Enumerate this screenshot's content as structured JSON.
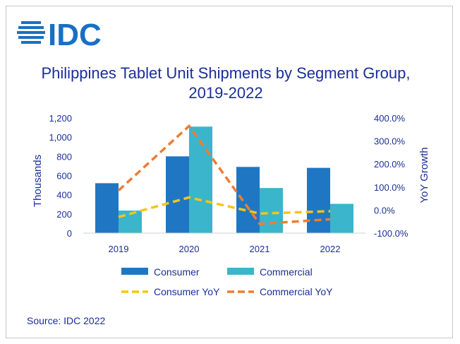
{
  "logo": {
    "text": "IDC",
    "color": "#1a6fc4"
  },
  "source": "Source: IDC 2022",
  "colors": {
    "text": "#1a2e9a",
    "consumer": "#1f77c4",
    "commercial": "#3bb5cc",
    "consumer_yoy": "#f5c518",
    "commercial_yoy": "#ed7d31"
  },
  "chart_data": {
    "type": "bar",
    "title": "Philippines Tablet Unit Shipments by Segment Group, 2019-2022",
    "categories": [
      "2019",
      "2020",
      "2021",
      "2022"
    ],
    "ylabel": "Thousands",
    "y2label": "YoY Growth",
    "ylim": [
      0,
      1200
    ],
    "yticks": [
      "0",
      "200",
      "400",
      "600",
      "800",
      "1,000",
      "1,200"
    ],
    "y2lim": [
      -100,
      400
    ],
    "y2ticks": [
      "-100.0%",
      "0.0%",
      "100.0%",
      "200.0%",
      "300.0%",
      "400.0%"
    ],
    "series": [
      {
        "name": "Consumer",
        "kind": "bar",
        "axis": "left",
        "values": [
          520,
          800,
          690,
          680
        ]
      },
      {
        "name": "Commercial",
        "kind": "bar",
        "axis": "left",
        "values": [
          235,
          1110,
          470,
          305
        ]
      },
      {
        "name": "Consumer YoY",
        "kind": "line",
        "style": "dashed",
        "axis": "right",
        "values": [
          -30,
          55,
          -15,
          -5
        ]
      },
      {
        "name": "Commercial YoY",
        "kind": "line",
        "style": "dashed",
        "axis": "right",
        "values": [
          85,
          365,
          -60,
          -40
        ]
      }
    ],
    "legend": "bottom",
    "grid": false
  }
}
